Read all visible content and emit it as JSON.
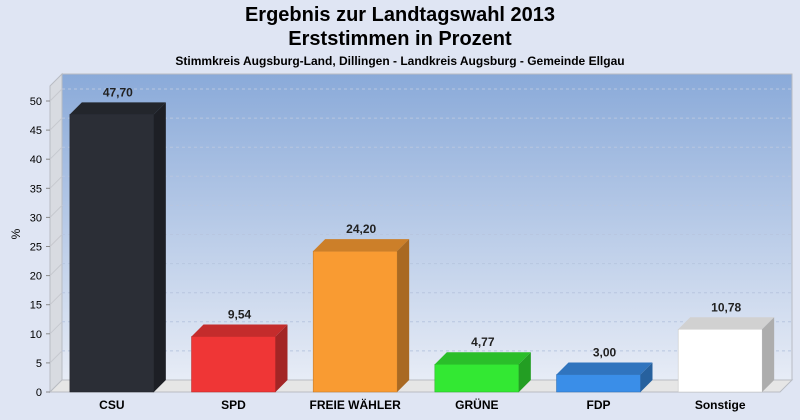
{
  "chart_data": {
    "type": "bar",
    "title": "Ergebnis zur Landtagswahl 2013",
    "title2": "Erststimmen in Prozent",
    "subtitle": "Stimmkreis Augsburg-Land, Dillingen - Landkreis Augsburg - Gemeinde Ellgau",
    "xlabel": "",
    "ylabel": "%",
    "ylim": [
      0,
      50
    ],
    "yticks": [
      0,
      5,
      10,
      15,
      20,
      25,
      30,
      35,
      40,
      45,
      50
    ],
    "grid": true,
    "categories": [
      "CSU",
      "SPD",
      "FREIE WÄHLER",
      "GRÜNE",
      "FDP",
      "Sonstige"
    ],
    "values": [
      47.7,
      9.54,
      24.2,
      4.77,
      3.0,
      10.78
    ],
    "value_labels": [
      "47,70",
      "9,54",
      "24,20",
      "4,77",
      "3,00",
      "10,78"
    ],
    "colors": [
      "#2b2e36",
      "#ef3636",
      "#f99b32",
      "#33e833",
      "#3a8ee8",
      "#ffffff"
    ]
  }
}
